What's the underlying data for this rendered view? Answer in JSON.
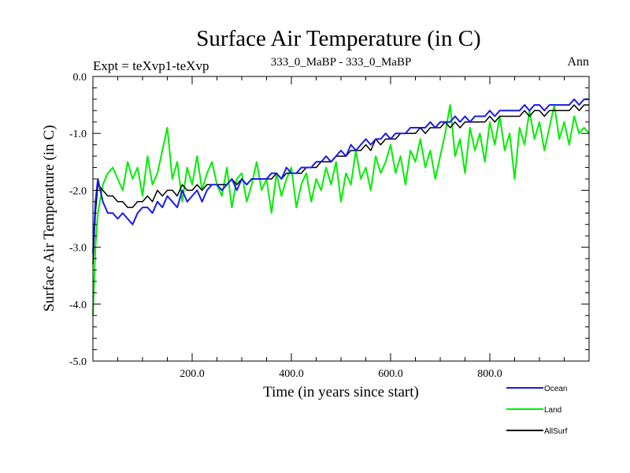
{
  "chart_data": {
    "type": "line",
    "title": "Surface Air Temperature (in C)",
    "subtitle_left": "Expt = teXvp1-teXvp",
    "subtitle_center": "333_0_MaBP - 333_0_MaBP",
    "subtitle_right": "Ann",
    "xlabel": "Time (in years since start)",
    "ylabel": "Surface Air Temperature (in C)",
    "xlim": [
      0,
      1000
    ],
    "ylim": [
      -5.0,
      0.0
    ],
    "x_ticks": [
      {
        "value": 200,
        "label": "200.0"
      },
      {
        "value": 400,
        "label": "400.0"
      },
      {
        "value": 600,
        "label": "600.0"
      },
      {
        "value": 800,
        "label": "800.0"
      }
    ],
    "y_ticks": [
      {
        "value": 0.0,
        "label": "0.0"
      },
      {
        "value": -1.0,
        "label": "-1.0"
      },
      {
        "value": -2.0,
        "label": "-2.0"
      },
      {
        "value": -3.0,
        "label": "-3.0"
      },
      {
        "value": -4.0,
        "label": "-4.0"
      },
      {
        "value": -5.0,
        "label": "-5.0"
      }
    ],
    "legend_position": "bottom-right",
    "series": [
      {
        "name": "Land",
        "color": "#00ee00",
        "x": [
          0,
          5,
          10,
          20,
          30,
          40,
          50,
          60,
          70,
          80,
          90,
          100,
          110,
          120,
          130,
          140,
          150,
          160,
          170,
          180,
          190,
          200,
          210,
          220,
          230,
          240,
          250,
          260,
          270,
          280,
          290,
          300,
          310,
          320,
          330,
          340,
          350,
          360,
          370,
          380,
          390,
          400,
          410,
          420,
          430,
          440,
          450,
          460,
          470,
          480,
          490,
          500,
          510,
          520,
          530,
          540,
          550,
          560,
          570,
          580,
          590,
          600,
          610,
          620,
          630,
          640,
          650,
          660,
          670,
          680,
          690,
          700,
          710,
          720,
          730,
          740,
          750,
          760,
          770,
          780,
          790,
          800,
          810,
          820,
          830,
          840,
          850,
          860,
          870,
          880,
          890,
          900,
          910,
          920,
          930,
          940,
          950,
          960,
          970,
          980,
          990,
          1000
        ],
        "values": [
          -4.2,
          -3.0,
          -2.4,
          -1.9,
          -1.7,
          -1.6,
          -1.8,
          -2.0,
          -1.5,
          -1.8,
          -1.6,
          -2.1,
          -1.4,
          -1.9,
          -1.7,
          -1.3,
          -0.9,
          -1.8,
          -1.5,
          -2.2,
          -1.6,
          -1.9,
          -1.4,
          -2.0,
          -1.7,
          -1.5,
          -1.9,
          -2.1,
          -1.6,
          -2.3,
          -1.8,
          -1.7,
          -2.2,
          -1.9,
          -1.5,
          -2.0,
          -1.8,
          -2.4,
          -1.7,
          -2.1,
          -1.8,
          -1.6,
          -2.3,
          -1.9,
          -1.7,
          -2.2,
          -1.8,
          -2.0,
          -1.6,
          -1.9,
          -1.5,
          -2.2,
          -1.7,
          -1.9,
          -1.3,
          -1.8,
          -1.6,
          -2.0,
          -1.4,
          -1.7,
          -1.5,
          -1.2,
          -1.7,
          -1.4,
          -1.9,
          -1.3,
          -1.5,
          -1.1,
          -1.6,
          -1.3,
          -1.8,
          -1.4,
          -1.0,
          -0.5,
          -1.4,
          -1.1,
          -1.7,
          -0.9,
          -1.3,
          -1.0,
          -1.5,
          -0.8,
          -1.2,
          -0.7,
          -1.3,
          -1.0,
          -1.8,
          -0.9,
          -1.2,
          -0.6,
          -1.1,
          -0.8,
          -1.3,
          -0.9,
          -0.5,
          -1.1,
          -0.8,
          -1.2,
          -0.7,
          -1.0,
          -0.9,
          -1.0
        ]
      },
      {
        "name": "AllSurf",
        "color": "#000000",
        "x": [
          0,
          5,
          10,
          20,
          30,
          40,
          50,
          60,
          70,
          80,
          90,
          100,
          110,
          120,
          130,
          140,
          150,
          160,
          170,
          180,
          190,
          200,
          210,
          220,
          230,
          240,
          250,
          260,
          270,
          280,
          290,
          300,
          310,
          320,
          330,
          340,
          350,
          360,
          370,
          380,
          390,
          400,
          410,
          420,
          430,
          440,
          450,
          460,
          470,
          480,
          490,
          500,
          510,
          520,
          530,
          540,
          550,
          560,
          570,
          580,
          590,
          600,
          610,
          620,
          630,
          640,
          650,
          660,
          670,
          680,
          690,
          700,
          710,
          720,
          730,
          740,
          750,
          760,
          770,
          780,
          790,
          800,
          810,
          820,
          830,
          840,
          850,
          860,
          870,
          880,
          890,
          900,
          910,
          920,
          930,
          940,
          950,
          960,
          970,
          980,
          990,
          1000
        ],
        "values": [
          -3.3,
          -2.4,
          -1.9,
          -2.0,
          -2.1,
          -2.1,
          -2.2,
          -2.2,
          -2.3,
          -2.3,
          -2.2,
          -2.2,
          -2.1,
          -2.2,
          -2.0,
          -2.1,
          -2.0,
          -2.0,
          -2.1,
          -1.9,
          -2.0,
          -2.0,
          -1.9,
          -2.0,
          -1.9,
          -1.9,
          -1.9,
          -1.9,
          -1.9,
          -1.8,
          -1.9,
          -1.8,
          -1.9,
          -1.8,
          -1.8,
          -1.8,
          -1.8,
          -1.8,
          -1.7,
          -1.8,
          -1.7,
          -1.7,
          -1.7,
          -1.7,
          -1.6,
          -1.6,
          -1.6,
          -1.5,
          -1.5,
          -1.5,
          -1.4,
          -1.4,
          -1.4,
          -1.3,
          -1.3,
          -1.3,
          -1.2,
          -1.3,
          -1.1,
          -1.2,
          -1.1,
          -1.1,
          -1.1,
          -1.0,
          -1.0,
          -1.0,
          -1.0,
          -0.9,
          -1.0,
          -0.9,
          -0.9,
          -0.9,
          -0.8,
          -0.9,
          -0.8,
          -0.9,
          -0.8,
          -0.8,
          -0.8,
          -0.8,
          -0.8,
          -0.7,
          -0.8,
          -0.7,
          -0.7,
          -0.7,
          -0.7,
          -0.7,
          -0.6,
          -0.7,
          -0.6,
          -0.6,
          -0.7,
          -0.6,
          -0.6,
          -0.6,
          -0.6,
          -0.6,
          -0.5,
          -0.6,
          -0.5,
          -0.5
        ]
      },
      {
        "name": "Ocean",
        "color": "#1a1aee",
        "x": [
          0,
          5,
          10,
          20,
          30,
          40,
          50,
          60,
          70,
          80,
          90,
          100,
          110,
          120,
          130,
          140,
          150,
          160,
          170,
          180,
          190,
          200,
          210,
          220,
          230,
          240,
          250,
          260,
          270,
          280,
          290,
          300,
          310,
          320,
          330,
          340,
          350,
          360,
          370,
          380,
          390,
          400,
          410,
          420,
          430,
          440,
          450,
          460,
          470,
          480,
          490,
          500,
          510,
          520,
          530,
          540,
          550,
          560,
          570,
          580,
          590,
          600,
          610,
          620,
          630,
          640,
          650,
          660,
          670,
          680,
          690,
          700,
          710,
          720,
          730,
          740,
          750,
          760,
          770,
          780,
          790,
          800,
          810,
          820,
          830,
          840,
          850,
          860,
          870,
          880,
          890,
          900,
          910,
          920,
          930,
          940,
          950,
          960,
          970,
          980,
          990,
          1000
        ],
        "values": [
          -3.1,
          -2.2,
          -1.8,
          -2.2,
          -2.4,
          -2.4,
          -2.5,
          -2.4,
          -2.5,
          -2.6,
          -2.4,
          -2.3,
          -2.3,
          -2.4,
          -2.2,
          -2.3,
          -2.1,
          -2.2,
          -2.3,
          -2.0,
          -2.2,
          -2.1,
          -2.0,
          -2.2,
          -2.0,
          -1.9,
          -1.9,
          -2.0,
          -1.9,
          -1.8,
          -2.0,
          -1.8,
          -1.9,
          -1.8,
          -1.8,
          -1.8,
          -1.8,
          -1.7,
          -1.7,
          -1.8,
          -1.6,
          -1.7,
          -1.7,
          -1.6,
          -1.6,
          -1.6,
          -1.5,
          -1.5,
          -1.4,
          -1.5,
          -1.4,
          -1.3,
          -1.4,
          -1.2,
          -1.3,
          -1.2,
          -1.1,
          -1.2,
          -1.1,
          -1.1,
          -1.0,
          -1.1,
          -1.0,
          -1.0,
          -1.0,
          -0.9,
          -0.9,
          -0.9,
          -0.9,
          -0.8,
          -0.9,
          -0.8,
          -0.8,
          -0.8,
          -0.7,
          -0.8,
          -0.7,
          -0.8,
          -0.7,
          -0.7,
          -0.7,
          -0.6,
          -0.7,
          -0.6,
          -0.6,
          -0.6,
          -0.6,
          -0.6,
          -0.5,
          -0.6,
          -0.5,
          -0.5,
          -0.6,
          -0.5,
          -0.5,
          -0.5,
          -0.5,
          -0.5,
          -0.4,
          -0.5,
          -0.4,
          -0.4
        ]
      }
    ]
  }
}
